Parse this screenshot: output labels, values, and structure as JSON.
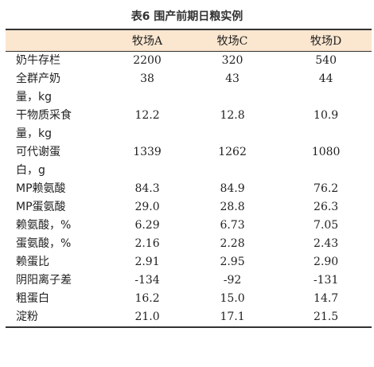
{
  "title": "表6 围产前期日粮实例",
  "headers": [
    "",
    "牧场A",
    "牧场C",
    "牧场D"
  ],
  "rows": [
    {
      "label_lines": [
        "奶牛存栏"
      ],
      "values": [
        "2200",
        "320",
        "540"
      ]
    },
    {
      "label_lines": [
        "全群产奶",
        "量，kg"
      ],
      "values": [
        "38",
        "43",
        "44"
      ]
    },
    {
      "label_lines": [
        "干物质采食",
        "量，kg"
      ],
      "values": [
        "12.2",
        "12.8",
        "10.9"
      ]
    },
    {
      "label_lines": [
        "可代谢蛋",
        "白，g"
      ],
      "values": [
        "1339",
        "1262",
        "1080"
      ]
    },
    {
      "label_lines": [
        "MP赖氨酸"
      ],
      "values": [
        "84.3",
        "84.9",
        "76.2"
      ]
    },
    {
      "label_lines": [
        "MP蛋氨酸"
      ],
      "values": [
        "29.0",
        "28.8",
        "26.3"
      ]
    },
    {
      "label_lines": [
        "赖氨酸，%"
      ],
      "values": [
        "6.29",
        "6.73",
        "7.05"
      ]
    },
    {
      "label_lines": [
        "蛋氨酸，%"
      ],
      "values": [
        "2.16",
        "2.28",
        "2.43"
      ]
    },
    {
      "label_lines": [
        "赖蛋比"
      ],
      "values": [
        "2.91",
        "2.95",
        "2.90"
      ]
    },
    {
      "label_lines": [
        "阴阳离子差"
      ],
      "values": [
        "-134",
        "-92",
        "-131"
      ]
    },
    {
      "label_lines": [
        "粗蛋白"
      ],
      "values": [
        "16.2",
        "15.0",
        "14.7"
      ]
    },
    {
      "label_lines": [
        "淀粉"
      ],
      "values": [
        "21.0",
        "17.1",
        "21.5"
      ]
    }
  ]
}
